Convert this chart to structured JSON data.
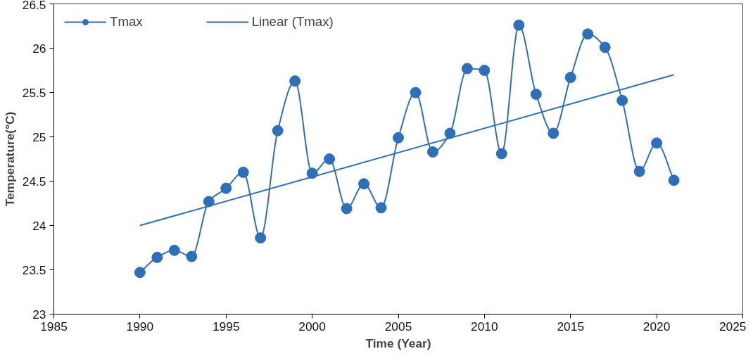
{
  "chart_data": {
    "type": "line",
    "xlabel": "Time (Year)",
    "ylabel": "Temperature(°C)",
    "x": [
      1990,
      1991,
      1992,
      1993,
      1994,
      1995,
      1996,
      1997,
      1998,
      1999,
      2000,
      2001,
      2002,
      2003,
      2004,
      2005,
      2006,
      2007,
      2008,
      2009,
      2010,
      2011,
      2012,
      2013,
      2014,
      2015,
      2016,
      2017,
      2018,
      2019,
      2020,
      2021
    ],
    "series": [
      {
        "name": "Tmax",
        "color": "#2e6fba",
        "marker": "circle",
        "values": [
          23.47,
          23.64,
          23.72,
          23.65,
          24.27,
          24.42,
          24.6,
          23.86,
          25.07,
          25.63,
          24.59,
          24.75,
          24.19,
          24.47,
          24.2,
          24.99,
          25.5,
          24.83,
          25.04,
          25.77,
          25.75,
          24.81,
          26.26,
          25.48,
          25.04,
          25.67,
          26.16,
          26.01,
          25.41,
          24.61,
          24.93,
          24.51
        ]
      },
      {
        "name": "Linear (Tmax)",
        "color": "#2e6fba",
        "type": "line",
        "marker": "none",
        "x": [
          1990,
          2021
        ],
        "values": [
          24.0,
          25.7
        ]
      }
    ],
    "xlim": [
      1985,
      2025
    ],
    "xticks": [
      1985,
      1990,
      1995,
      2000,
      2005,
      2010,
      2015,
      2020,
      2025
    ],
    "ylim": [
      23,
      26.5
    ],
    "yticks": [
      23,
      23.5,
      24,
      24.5,
      25,
      25.5,
      26,
      26.5
    ],
    "grid": false,
    "legend": "top left"
  }
}
